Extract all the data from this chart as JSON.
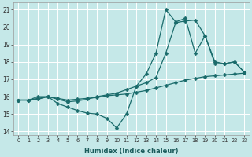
{
  "xlabel": "Humidex (Indice chaleur)",
  "bg_color": "#c5e8e8",
  "grid_color": "#ffffff",
  "line_color": "#1a6b6b",
  "xlim": [
    -0.5,
    23.5
  ],
  "ylim": [
    13.8,
    21.4
  ],
  "xticks": [
    0,
    1,
    2,
    3,
    4,
    5,
    6,
    7,
    8,
    9,
    10,
    11,
    12,
    13,
    14,
    15,
    16,
    17,
    18,
    19,
    20,
    21,
    22,
    23
  ],
  "yticks": [
    14,
    15,
    16,
    17,
    18,
    19,
    20,
    21
  ],
  "line1_x": [
    0,
    1,
    2,
    3,
    4,
    5,
    6,
    7,
    8,
    9,
    10,
    11,
    12,
    13,
    14,
    15,
    16,
    17,
    18,
    19,
    20,
    21,
    22,
    23
  ],
  "line1_y": [
    15.8,
    15.8,
    15.85,
    16.0,
    15.9,
    15.8,
    15.85,
    15.9,
    15.95,
    16.05,
    16.1,
    16.15,
    16.25,
    16.35,
    16.5,
    16.65,
    16.8,
    16.95,
    17.05,
    17.15,
    17.2,
    17.25,
    17.3,
    17.35
  ],
  "line2_x": [
    0,
    1,
    2,
    3,
    4,
    5,
    6,
    7,
    8,
    9,
    10,
    11,
    12,
    13,
    14,
    15,
    16,
    17,
    18,
    19,
    20,
    21,
    22,
    23
  ],
  "line2_y": [
    15.8,
    15.8,
    16.0,
    16.0,
    15.85,
    15.7,
    15.75,
    15.85,
    16.0,
    16.1,
    16.2,
    16.4,
    16.6,
    16.8,
    17.1,
    18.5,
    20.25,
    20.35,
    20.4,
    19.5,
    18.0,
    17.9,
    18.0,
    17.4
  ],
  "line3_x": [
    0,
    1,
    2,
    3,
    4,
    5,
    6,
    7,
    8,
    9,
    10,
    11,
    12,
    13,
    14,
    15,
    16,
    17,
    18,
    19,
    20,
    21,
    22,
    23
  ],
  "line3_y": [
    15.8,
    15.8,
    15.9,
    16.0,
    15.6,
    15.4,
    15.2,
    15.05,
    15.0,
    14.75,
    14.2,
    15.0,
    16.6,
    17.3,
    18.5,
    21.0,
    20.3,
    20.5,
    18.5,
    19.5,
    17.9,
    17.9,
    18.0,
    17.4
  ]
}
